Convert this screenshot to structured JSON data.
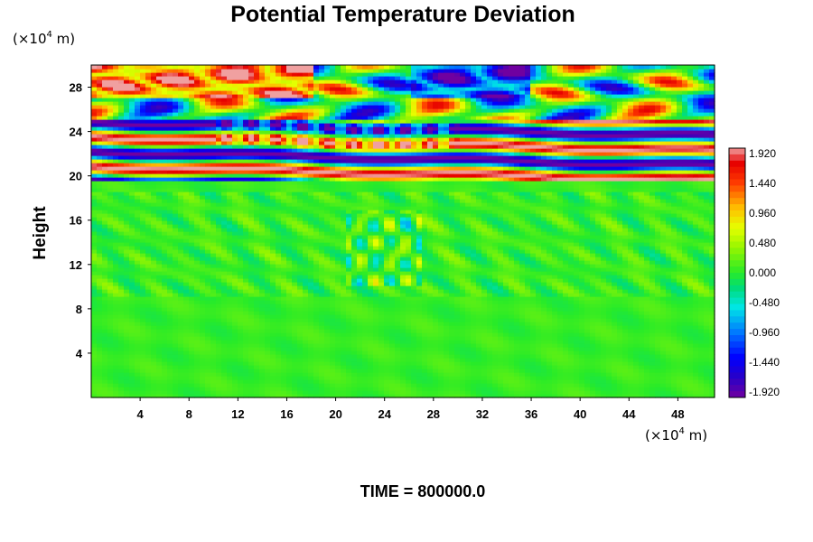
{
  "chart_data": {
    "type": "heatmap",
    "title": "Potential Temperature Deviation",
    "ylabel": "Height",
    "x_unit": "(×10",
    "x_unit_exp": "4",
    "x_unit_tail": " m)",
    "y_unit": "(×10",
    "y_unit_exp": "4",
    "y_unit_tail": " m)",
    "xlim": [
      0,
      51
    ],
    "ylim": [
      0,
      30
    ],
    "x_ticks": [
      4,
      8,
      12,
      16,
      20,
      24,
      28,
      32,
      36,
      40,
      44,
      48
    ],
    "y_ticks": [
      4,
      8,
      12,
      16,
      20,
      24,
      28
    ],
    "colorbar": {
      "min": -1.92,
      "max": 1.92,
      "tick_labels": [
        "1.920",
        "1.440",
        "0.960",
        "0.480",
        "0.000",
        "-0.480",
        "-0.960",
        "-1.440",
        "-1.920"
      ],
      "tick_values": [
        1.92,
        1.44,
        0.96,
        0.48,
        0.0,
        -0.48,
        -0.96,
        -1.44,
        -1.92
      ],
      "color_low": "#7000a0",
      "color_high": "#f0a0a0"
    },
    "field_description_bands": [
      {
        "y_from": 0,
        "y_to": 19.5,
        "typical_value": 0.05
      },
      {
        "y_from": 19.5,
        "y_to": 25,
        "typical_value": 1.9,
        "alternating": true
      },
      {
        "y_from": 25,
        "y_to": 30,
        "typical_value": 0.0,
        "wavy": true
      }
    ],
    "time_label": "TIME = 800000.0"
  }
}
